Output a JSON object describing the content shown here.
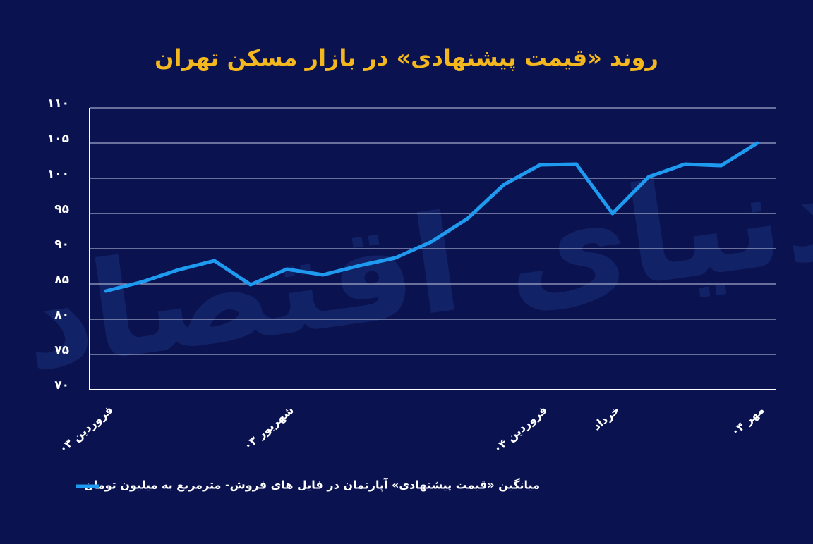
{
  "chart_data": {
    "type": "line",
    "title": "روند «قیمت پیشنهادی» در بازار مسکن تهران",
    "watermark": "دنیای اقتصاد",
    "categories": [
      "فروردین ۰۳",
      null,
      null,
      null,
      null,
      "شهریور ۰۳",
      null,
      null,
      null,
      null,
      null,
      null,
      "فروردین ۰۴",
      null,
      "خرداد",
      null,
      null,
      null,
      "مهر ۰۴"
    ],
    "series": [
      {
        "name": "میانگین «قیمت پیشنهادی» آپارتمان در فایل های فروش- مترمربع به میلیون تومان",
        "color": "#1e9bf0",
        "values": [
          84,
          85.3,
          87,
          88.3,
          84.9,
          87.1,
          86.3,
          87.6,
          88.7,
          91,
          94.3,
          99.1,
          101.9,
          102,
          95,
          100.2,
          102,
          101.8,
          105
        ]
      }
    ],
    "ylim": [
      70,
      110
    ],
    "yticks": [
      {
        "value": 70,
        "label": "۷۰"
      },
      {
        "value": 75,
        "label": "۷۵"
      },
      {
        "value": 80,
        "label": "۸۰"
      },
      {
        "value": 85,
        "label": "۸۵"
      },
      {
        "value": 90,
        "label": "۹۰"
      },
      {
        "value": 95,
        "label": "۹۵"
      },
      {
        "value": 100,
        "label": "۱۰۰"
      },
      {
        "value": 105,
        "label": "۱۰۵"
      },
      {
        "value": 110,
        "label": "۱۱۰"
      }
    ],
    "grid": true
  }
}
